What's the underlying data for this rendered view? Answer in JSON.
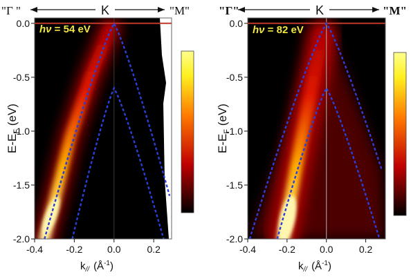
{
  "colors": {
    "background": "#000000",
    "fermi_line": "#c0392b",
    "band_line": "#2b3fd6",
    "k_line": "#888888",
    "label_yellow": "#f2e640"
  },
  "chart_data": [
    {
      "type": "heatmap",
      "panel": "left",
      "photon_text": "hν = 54 eV",
      "photon_symbol": "hν",
      "photon_value": " = 54 eV",
      "direction_left": "\"Γ \"",
      "direction_center": "K",
      "direction_right": "\"M\"",
      "ylabel": "E-E",
      "ylabel_sub": "F",
      "ylabel_unit": " (eV)",
      "xlabel": "k",
      "xlabel_sub": "//",
      "xlabel_unit": "(Å",
      "xlabel_unit_sup": "-1",
      "xlabel_unit_close": ")",
      "xlim": [
        -0.4,
        0.29
      ],
      "ylim": [
        -2.0,
        0.05
      ],
      "xticks": [
        -0.4,
        -0.2,
        0.0,
        0.2
      ],
      "xtick_labels": [
        "-0.4",
        "-0.2",
        "0.0",
        "0.2"
      ],
      "yticks": [
        0.0,
        -0.5,
        -1.0,
        -1.5,
        -2.0
      ],
      "ytick_labels": [
        "0.0",
        "-0.5",
        "-1.0",
        "-1.5",
        "-2.0"
      ],
      "fermi_level": 0.0,
      "upper_band": {
        "apex": [
          0.0,
          0.0
        ],
        "left_end": [
          -0.35,
          -2.0
        ],
        "right_end": [
          0.28,
          -1.6
        ]
      },
      "lower_band": {
        "apex": [
          0.0,
          -0.6
        ],
        "left_end": [
          -0.21,
          -2.0
        ],
        "right_end": [
          0.25,
          -2.0
        ]
      },
      "intensity_branch": [
        [
          -0.35,
          -2.0
        ],
        [
          -0.3,
          -1.65
        ],
        [
          -0.22,
          -1.05
        ],
        [
          -0.12,
          -0.5
        ],
        [
          -0.02,
          -0.05
        ]
      ]
    },
    {
      "type": "heatmap",
      "panel": "right",
      "photon_text": "hν = 82 eV",
      "photon_symbol": "hν",
      "photon_value": " = 82 eV",
      "direction_left": "\"Γ\"",
      "direction_center": "K",
      "direction_right": "\"M\"",
      "ylabel": "E-E",
      "ylabel_sub": "F",
      "ylabel_unit": " (eV)",
      "xlabel": "k",
      "xlabel_sub": "//",
      "xlabel_unit": "(Å",
      "xlabel_unit_sup": "-1",
      "xlabel_unit_close": ")",
      "xlim": [
        -0.4,
        0.3
      ],
      "ylim": [
        -2.0,
        0.05
      ],
      "xticks": [
        -0.4,
        -0.2,
        0.0,
        0.2
      ],
      "xtick_labels": [
        "-0.4",
        "-0.2",
        "0.0",
        "0.2"
      ],
      "yticks": [
        0.0,
        -0.5,
        -1.0,
        -1.5,
        -2.0
      ],
      "ytick_labels": [
        "0.0",
        "-0.5",
        "-1.0",
        "-1.5",
        "-2.0"
      ],
      "fermi_level": 0.0,
      "upper_band": {
        "apex": [
          0.0,
          0.0
        ],
        "left_end": [
          -0.39,
          -2.0
        ],
        "right_end": [
          0.28,
          -1.35
        ]
      },
      "lower_band": {
        "apex": [
          0.0,
          -0.6
        ],
        "left_end": [
          -0.25,
          -2.0
        ],
        "right_end": [
          0.27,
          -2.0
        ]
      },
      "intensity_branch": [
        [
          -0.22,
          -2.0
        ],
        [
          -0.19,
          -1.7
        ],
        [
          -0.13,
          -1.1
        ],
        [
          -0.07,
          -0.55
        ],
        [
          -0.02,
          -0.1
        ]
      ]
    }
  ]
}
